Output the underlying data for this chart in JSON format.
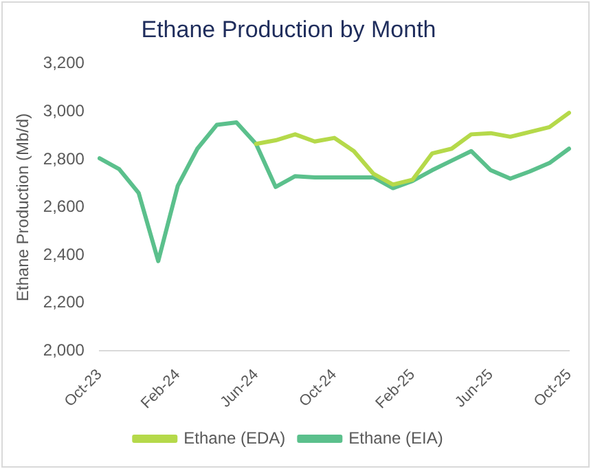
{
  "chart_data": {
    "type": "line",
    "title": "Ethane Production by Month",
    "ylabel": "Ethane Production (Mb/d)",
    "categories": [
      "Oct-23",
      null,
      null,
      null,
      "Feb-24",
      null,
      null,
      null,
      "Jun-24",
      null,
      null,
      null,
      "Oct-24",
      null,
      null,
      null,
      "Feb-25",
      null,
      null,
      null,
      "Jun-25",
      null,
      null,
      null,
      "Oct-25"
    ],
    "series": [
      {
        "name": "Ethane (EDA)",
        "color": "#b5d94a",
        "values": [
          null,
          null,
          null,
          null,
          null,
          null,
          null,
          null,
          2865,
          2880,
          2905,
          2875,
          2890,
          2835,
          2740,
          2695,
          2715,
          2825,
          2845,
          2905,
          2910,
          2895,
          2915,
          2935,
          2995
        ]
      },
      {
        "name": "Ethane (EIA)",
        "color": "#5bc08c",
        "values": [
          2805,
          2760,
          2660,
          2375,
          2690,
          2845,
          2945,
          2955,
          2865,
          2685,
          2730,
          2725,
          2725,
          2725,
          2725,
          2680,
          2710,
          2755,
          2795,
          2835,
          2755,
          2720,
          2750,
          2785,
          2845
        ]
      }
    ],
    "ylim": [
      2000,
      3200
    ],
    "yticks": [
      {
        "value": 2000,
        "label": "2,000"
      },
      {
        "value": 2200,
        "label": "2,200"
      },
      {
        "value": 2400,
        "label": "2,400"
      },
      {
        "value": 2600,
        "label": "2,600"
      },
      {
        "value": 2800,
        "label": "2,800"
      },
      {
        "value": 3000,
        "label": "3,000"
      },
      {
        "value": 3200,
        "label": "3,200"
      }
    ],
    "grid": false,
    "legend": "bottom",
    "marker": "none",
    "line_style": "solid"
  }
}
